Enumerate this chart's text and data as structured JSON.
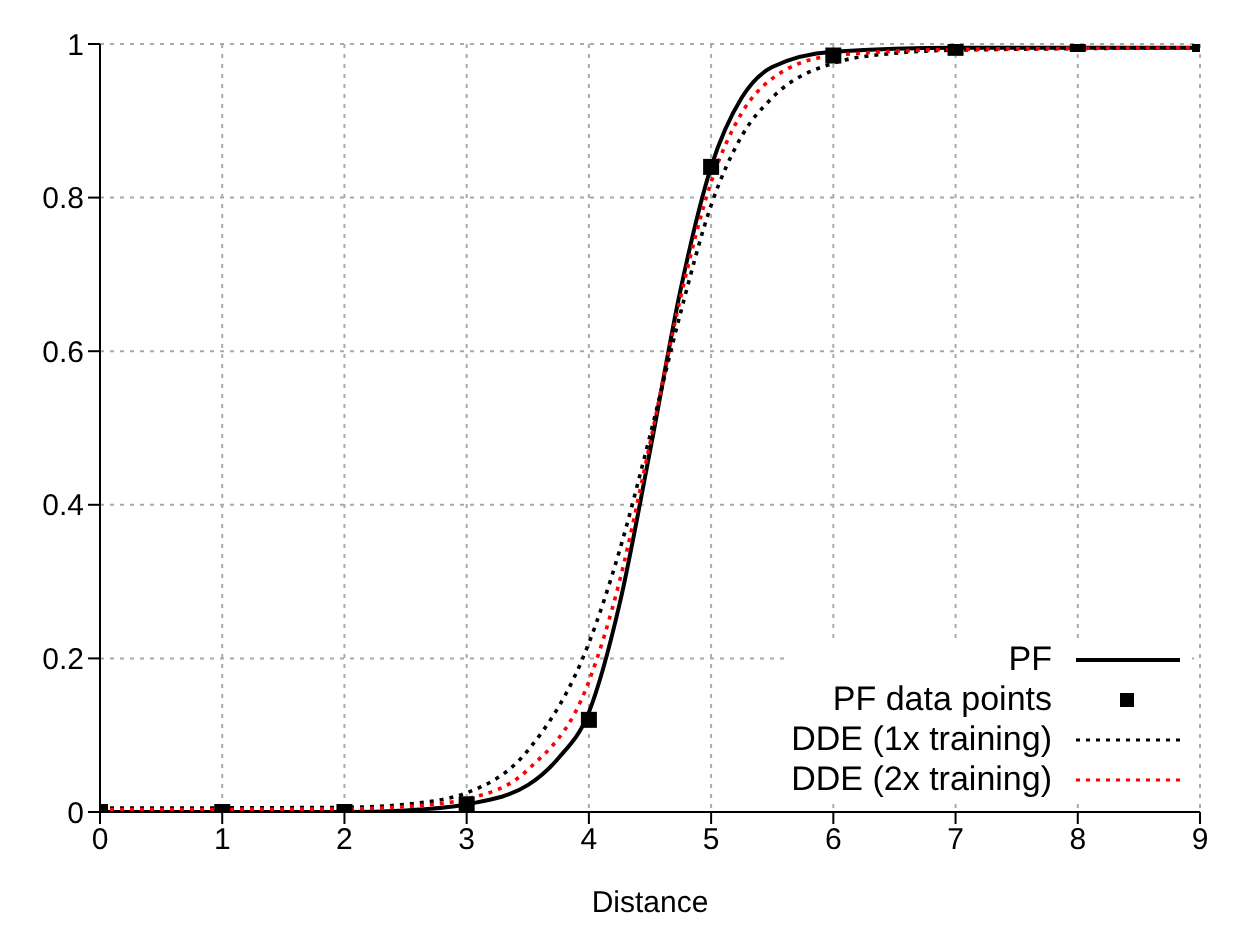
{
  "chart_data": {
    "type": "line",
    "xlabel": "Distance",
    "xlim": [
      0,
      9
    ],
    "xticks": [
      0,
      1,
      2,
      3,
      4,
      5,
      6,
      7,
      8,
      9
    ],
    "ylim": [
      0,
      1
    ],
    "yticks": [
      0,
      0.2,
      0.4,
      0.6,
      0.8,
      1
    ],
    "grid": true,
    "legend": "bottom right",
    "series": [
      {
        "name": "PF",
        "type": "line",
        "color": "#000000",
        "line_style": "solid",
        "marker": "none",
        "x": [
          0,
          2,
          2.5,
          3,
          3.5,
          3.75,
          4,
          4.25,
          4.5,
          4.75,
          5,
          5.25,
          5.5,
          6,
          7,
          9
        ],
        "values": [
          0,
          0,
          0.002,
          0.01,
          0.035,
          0.07,
          0.13,
          0.27,
          0.47,
          0.68,
          0.84,
          0.93,
          0.97,
          0.99,
          0.995,
          0.995
        ]
      },
      {
        "name": "PF data points",
        "type": "scatter",
        "color": "#000000",
        "marker": "square",
        "x": [
          0,
          1,
          2,
          3,
          4,
          5,
          6,
          7,
          8,
          9
        ],
        "values": [
          0,
          0,
          0,
          0.01,
          0.12,
          0.84,
          0.985,
          0.995,
          1,
          1
        ]
      },
      {
        "name": "DDE (1x training)",
        "type": "line",
        "color": "#000000",
        "line_style": "dotted",
        "marker": "none",
        "x": [
          0,
          2,
          2.5,
          3,
          3.5,
          4,
          4.25,
          4.5,
          4.75,
          5,
          5.25,
          5.5,
          6,
          6.5,
          7,
          9
        ],
        "values": [
          0.005,
          0.006,
          0.01,
          0.025,
          0.08,
          0.22,
          0.34,
          0.49,
          0.65,
          0.79,
          0.88,
          0.93,
          0.975,
          0.988,
          0.992,
          0.995
        ]
      },
      {
        "name": "DDE (2x training)",
        "type": "line",
        "color": "#ff0000",
        "line_style": "dotted",
        "marker": "none",
        "x": [
          0,
          2,
          2.5,
          3,
          3.5,
          4,
          4.25,
          4.5,
          4.75,
          5,
          5.25,
          5.5,
          6,
          7,
          9
        ],
        "values": [
          0.003,
          0.004,
          0.007,
          0.017,
          0.055,
          0.17,
          0.3,
          0.48,
          0.67,
          0.82,
          0.91,
          0.955,
          0.985,
          0.993,
          0.995
        ]
      }
    ]
  }
}
